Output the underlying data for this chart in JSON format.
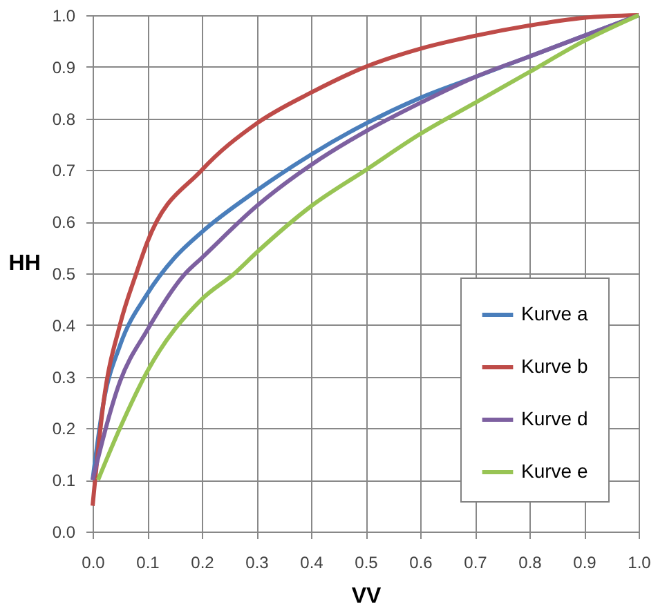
{
  "chart_data": {
    "type": "line",
    "xlabel": "VV",
    "ylabel": "HH",
    "xlim": [
      0,
      1
    ],
    "ylim": [
      0,
      1
    ],
    "xticks": [
      {
        "value": 0,
        "label": "0.0"
      },
      0.1,
      0.2,
      0.3,
      0.4,
      0.5,
      0.6,
      0.7,
      0.8,
      0.9,
      {
        "value": 1,
        "label": "1.0"
      }
    ],
    "yticks": [
      {
        "value": 0,
        "label": "0.0"
      },
      0.1,
      0.2,
      0.3,
      0.4,
      0.5,
      0.6,
      0.7,
      0.8,
      0.9,
      {
        "value": 1,
        "label": "1.0"
      }
    ],
    "grid": true,
    "legend": "bottom right",
    "marker": "none",
    "line_style": "solid",
    "series": [
      {
        "name": "Kurve a",
        "color": "#4a7ebb",
        "x": [
          0,
          0.02,
          0.05,
          0.1,
          0.15,
          0.2,
          0.3,
          0.4,
          0.5,
          0.6,
          0.7,
          0.8,
          0.9,
          1
        ],
        "values": [
          0.1,
          0.25,
          0.36,
          0.46,
          0.53,
          0.58,
          0.66,
          0.73,
          0.79,
          0.84,
          0.88,
          0.92,
          0.96,
          1
        ]
      },
      {
        "name": "Kurve b",
        "color": "#be4b48",
        "x": [
          0,
          0.02,
          0.05,
          0.08,
          0.1,
          0.2,
          0.3,
          0.4,
          0.5,
          0.6,
          0.7,
          0.8,
          0.9,
          1
        ],
        "values": [
          0.05,
          0.25,
          0.4,
          0.5,
          0.56,
          0.7,
          0.79,
          0.85,
          0.9,
          0.935,
          0.96,
          0.98,
          0.995,
          1
        ]
      },
      {
        "name": "Kurve d",
        "color": "#7d60a0",
        "x": [
          0,
          0.05,
          0.1,
          0.17,
          0.2,
          0.3,
          0.4,
          0.5,
          0.6,
          0.7,
          0.8,
          0.9,
          1
        ],
        "values": [
          0.1,
          0.29,
          0.39,
          0.5,
          0.53,
          0.63,
          0.71,
          0.775,
          0.83,
          0.88,
          0.92,
          0.96,
          1
        ]
      },
      {
        "name": "Kurve e",
        "color": "#98c454",
        "x": [
          0.01,
          0.05,
          0.1,
          0.2,
          0.26,
          0.3,
          0.4,
          0.5,
          0.6,
          0.7,
          0.8,
          0.9,
          1
        ],
        "values": [
          0.1,
          0.2,
          0.31,
          0.45,
          0.5,
          0.54,
          0.63,
          0.7,
          0.77,
          0.83,
          0.89,
          0.95,
          1
        ]
      }
    ]
  }
}
